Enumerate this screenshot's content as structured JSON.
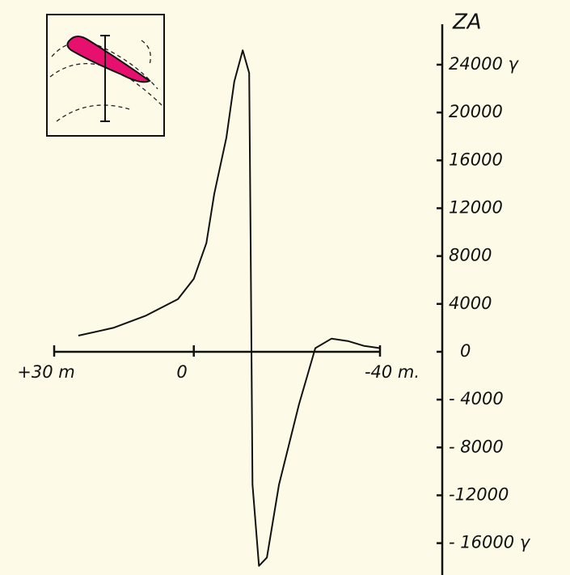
{
  "chart_data": {
    "type": "line",
    "y_label": "ZA",
    "color": "#111111",
    "x": [
      24.8,
      17.3,
      10.4,
      3.4,
      0,
      -2.7,
      -4.4,
      -7.0,
      -8.7,
      -10.5,
      -11.9,
      -12.2,
      -12.6,
      -14.0,
      -15.7,
      -18.3,
      -22.6,
      -26.1,
      -29.6,
      -33.1,
      -36.5,
      -40
    ],
    "values": [
      1350,
      2000,
      3000,
      4400,
      6100,
      9100,
      13200,
      17900,
      22600,
      25200,
      23300,
      9100,
      -11100,
      -17900,
      -17200,
      -11100,
      -4400,
      300,
      1100,
      900,
      500,
      300
    ],
    "xlim": [
      30,
      -40
    ],
    "xticks": [
      {
        "value": 30,
        "label": "+30 m"
      },
      0,
      {
        "value": -40,
        "label": "-40 m."
      }
    ],
    "ylim": [
      -18500,
      27000
    ],
    "yticks": [
      {
        "value": 24000,
        "label": "24000 γ"
      },
      20000,
      16000,
      12000,
      8000,
      4000,
      0,
      {
        "value": -4000,
        "label": "- 4000"
      },
      {
        "value": -8000,
        "label": "- 8000"
      },
      -12000,
      {
        "value": -16000,
        "label": "- 16000 γ"
      }
    ]
  }
}
